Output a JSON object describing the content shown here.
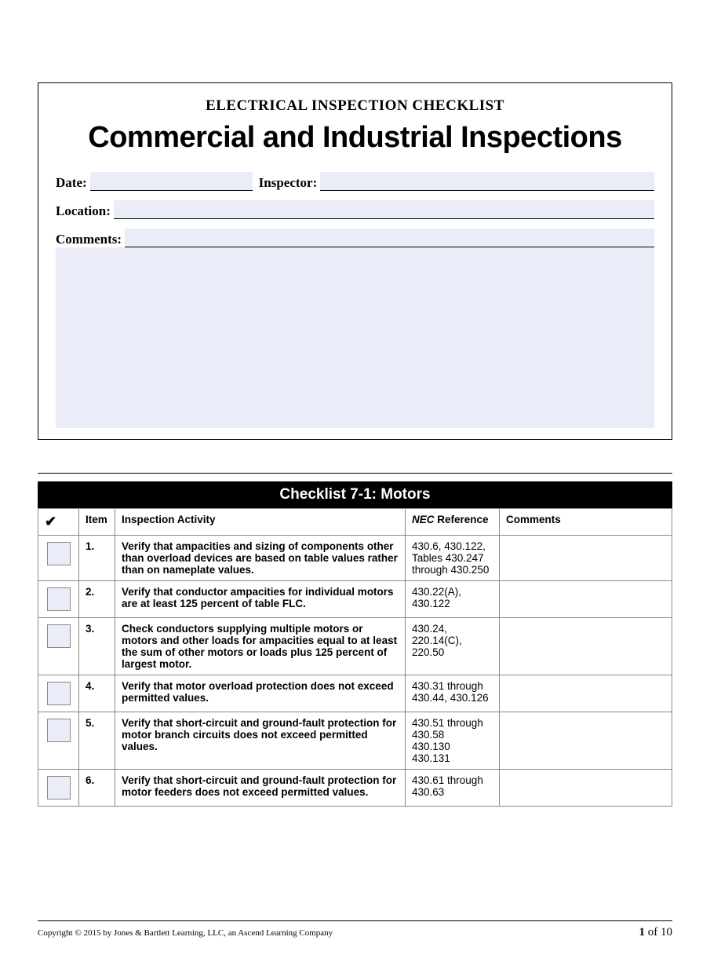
{
  "colors": {
    "page_bg": "#ffffff",
    "field_bg": "#eaecf8",
    "border": "#000000",
    "table_border": "#888888",
    "header_bg": "#000000",
    "header_fg": "#ffffff"
  },
  "header": {
    "overline": "ELECTRICAL INSPECTION CHECKLIST",
    "title": "Commercial and Industrial Inspections"
  },
  "fields": {
    "date_label": "Date:",
    "date_value": "",
    "inspector_label": "Inspector:",
    "inspector_value": "",
    "location_label": "Location:",
    "location_value": "",
    "comments_label": "Comments:",
    "comments_value": ""
  },
  "checklist": {
    "title": "Checklist 7-1: Motors",
    "columns": {
      "check": "✔",
      "item": "Item",
      "activity": "Inspection Activity",
      "nec_prefix_italic": "NEC",
      "nec_suffix": " Reference",
      "comments": "Comments"
    },
    "rows": [
      {
        "item": "1.",
        "activity": "Verify that ampacities and sizing of components other than overload devices are based on table values rather than on nameplate values.",
        "nec": "430.6, 430.122, Tables 430.247 through 430.250",
        "comments": ""
      },
      {
        "item": "2.",
        "activity": "Verify that conductor ampacities for individual motors are at least 125 percent of table FLC.",
        "nec": "430.22(A), 430.122",
        "comments": ""
      },
      {
        "item": "3.",
        "activity": "Check conductors supplying multiple motors or motors and other loads for ampacities equal to at least the sum of other motors or loads plus 125 percent of largest motor.",
        "nec": "430.24, 220.14(C), 220.50",
        "comments": ""
      },
      {
        "item": "4.",
        "activity": "Verify that motor overload protection does not exceed permitted values.",
        "nec": "430.31 through 430.44, 430.126",
        "comments": ""
      },
      {
        "item": "5.",
        "activity": "Verify that short-circuit and ground-fault protection for motor branch circuits does not exceed permitted values.",
        "nec": "430.51 through 430.58\n430.130\n430.131",
        "comments": ""
      },
      {
        "item": "6.",
        "activity": "Verify that short-circuit and ground-fault protection for motor feeders does not exceed permitted values.",
        "nec": "430.61 through 430.63",
        "comments": ""
      }
    ]
  },
  "footer": {
    "copyright": "Copyright © 2015 by Jones & Bartlett Learning, LLC, an Ascend Learning Company",
    "page_current": "1",
    "page_sep": " of ",
    "page_total": "10"
  }
}
